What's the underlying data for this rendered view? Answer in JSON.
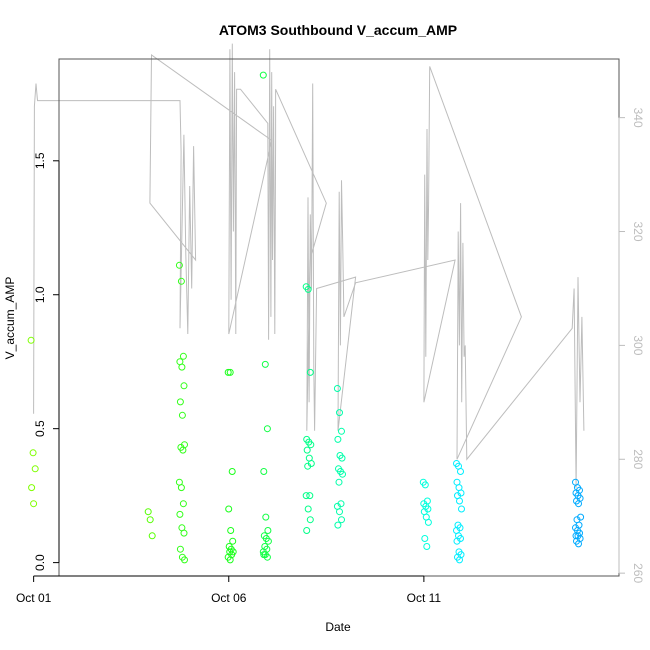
{
  "chart_data": {
    "type": "scatter",
    "title": "ATOM3 Southbound V_accum_AMP",
    "xlabel": "Date",
    "ylabel": "V_accum_AMP",
    "x_ticks": [
      "Oct 01",
      "Oct 06",
      "Oct 11"
    ],
    "y_ticks": [
      "0.0",
      "0.5",
      "1.0",
      "1.5"
    ],
    "y2_ticks": [
      "260",
      "280",
      "300",
      "320",
      "340"
    ],
    "xlim_days": [
      0.65,
      15.0
    ],
    "ylim": [
      -0.05,
      1.88
    ],
    "y2lim": [
      259.5,
      350.3
    ],
    "grid": false,
    "legend": "none",
    "colors": {
      "frame": "#555555",
      "line": "#bdbdbd",
      "right_axis": "#bdbdbd"
    },
    "point_groups": [
      {
        "day": 0.0,
        "color": "#7fff00",
        "values": [
          0.83,
          0.41,
          0.35,
          0.28,
          0.22
        ]
      },
      {
        "day": 3.0,
        "color": "#55ff00",
        "values": [
          0.19,
          0.16,
          0.1
        ]
      },
      {
        "day": 3.8,
        "color": "#33ff1a",
        "values": [
          1.11,
          1.05,
          0.77,
          0.75,
          0.73,
          0.66,
          0.6,
          0.55,
          0.44,
          0.43,
          0.42,
          0.3,
          0.28,
          0.22,
          0.18,
          0.13,
          0.11,
          0.05,
          0.02,
          0.01
        ]
      },
      {
        "day": 5.05,
        "color": "#1aff1a",
        "values": [
          0.71,
          0.71,
          0.34,
          0.2,
          0.12,
          0.08,
          0.06,
          0.05,
          0.04,
          0.04,
          0.03,
          0.02,
          0.01
        ]
      },
      {
        "day": 5.95,
        "color": "#11ff44",
        "values": [
          1.82,
          0.74,
          0.5,
          0.34,
          0.17,
          0.12,
          0.1,
          0.09,
          0.08,
          0.06,
          0.05,
          0.04,
          0.03,
          0.02,
          0.03
        ]
      },
      {
        "day": 7.05,
        "color": "#00ff88",
        "values": [
          1.03,
          1.02,
          0.71,
          0.46,
          0.45,
          0.44,
          0.42,
          0.39,
          0.37,
          0.36,
          0.25,
          0.25,
          0.2,
          0.16,
          0.12
        ]
      },
      {
        "day": 7.85,
        "color": "#00ffaa",
        "values": [
          0.65,
          0.56,
          0.49,
          0.46,
          0.4,
          0.39,
          0.35,
          0.34,
          0.33,
          0.3,
          0.22,
          0.21,
          0.19,
          0.16,
          0.14
        ]
      },
      {
        "day": 10.05,
        "color": "#00ffdd",
        "values": [
          0.3,
          0.29,
          0.23,
          0.22,
          0.21,
          0.2,
          0.19,
          0.17,
          0.15,
          0.09,
          0.06
        ]
      },
      {
        "day": 10.9,
        "color": "#00eeff",
        "values": [
          0.37,
          0.36,
          0.34,
          0.3,
          0.28,
          0.26,
          0.25,
          0.23,
          0.2,
          0.14,
          0.13,
          0.12,
          0.1,
          0.09,
          0.08,
          0.04,
          0.03,
          0.02,
          0.01
        ]
      },
      {
        "day": 13.95,
        "color": "#00aaff",
        "values": [
          0.3,
          0.28,
          0.27,
          0.26,
          0.25,
          0.24,
          0.23,
          0.22,
          0.17,
          0.16,
          0.14,
          0.13,
          0.12,
          0.11,
          0.1,
          0.1,
          0.09,
          0.08,
          0.07
        ]
      }
    ],
    "line_series": {
      "axis": "right",
      "color": "#bdbdbd",
      "points": [
        [
          0.0,
          288
        ],
        [
          0.02,
          342
        ],
        [
          0.06,
          346
        ],
        [
          0.1,
          343
        ],
        [
          3.75,
          343
        ],
        [
          3.78,
          334
        ],
        [
          3.75,
          303
        ],
        [
          3.85,
          337
        ],
        [
          3.9,
          316
        ],
        [
          3.95,
          302
        ],
        [
          4.0,
          328
        ],
        [
          4.05,
          310
        ],
        [
          4.1,
          335
        ],
        [
          4.15,
          315
        ],
        [
          2.98,
          325
        ],
        [
          3.02,
          351
        ],
        [
          6.1,
          336
        ],
        [
          5.0,
          302
        ],
        [
          5.03,
          352
        ],
        [
          5.06,
          308
        ],
        [
          5.09,
          353
        ],
        [
          5.12,
          320
        ],
        [
          5.15,
          348
        ],
        [
          5.18,
          302
        ],
        [
          5.2,
          345
        ],
        [
          5.3,
          345
        ],
        [
          6.0,
          339
        ],
        [
          6.02,
          301
        ],
        [
          6.05,
          352
        ],
        [
          6.08,
          305
        ],
        [
          6.1,
          348
        ],
        [
          6.12,
          315
        ],
        [
          6.15,
          342
        ],
        [
          6.18,
          302
        ],
        [
          6.2,
          336
        ],
        [
          6.2,
          345
        ],
        [
          7.5,
          325
        ],
        [
          7.08,
          315
        ],
        [
          7.0,
          285
        ],
        [
          7.03,
          326
        ],
        [
          7.06,
          290
        ],
        [
          7.09,
          323
        ],
        [
          7.12,
          310
        ],
        [
          7.15,
          346
        ],
        [
          7.18,
          296
        ],
        [
          7.2,
          285
        ],
        [
          7.25,
          310
        ],
        [
          8.25,
          312
        ],
        [
          7.8,
          285
        ],
        [
          7.83,
          327
        ],
        [
          7.86,
          300
        ],
        [
          7.89,
          329
        ],
        [
          7.92,
          318
        ],
        [
          7.95,
          305
        ],
        [
          8.25,
          311
        ],
        [
          10.8,
          315
        ],
        [
          10.0,
          290
        ],
        [
          10.02,
          330
        ],
        [
          10.05,
          298
        ],
        [
          10.08,
          338
        ],
        [
          10.1,
          315
        ],
        [
          10.12,
          325
        ],
        [
          10.15,
          349
        ],
        [
          10.15,
          349
        ],
        [
          12.5,
          305
        ],
        [
          10.85,
          280
        ],
        [
          10.88,
          320
        ],
        [
          10.91,
          300
        ],
        [
          10.94,
          325
        ],
        [
          10.97,
          290
        ],
        [
          11.0,
          318
        ],
        [
          11.03,
          298
        ],
        [
          11.06,
          300
        ],
        [
          11.1,
          280
        ],
        [
          13.8,
          303
        ],
        [
          13.85,
          310
        ],
        [
          13.9,
          275
        ],
        [
          13.95,
          312
        ],
        [
          14.0,
          290
        ],
        [
          14.05,
          305
        ],
        [
          14.1,
          285
        ]
      ]
    }
  }
}
